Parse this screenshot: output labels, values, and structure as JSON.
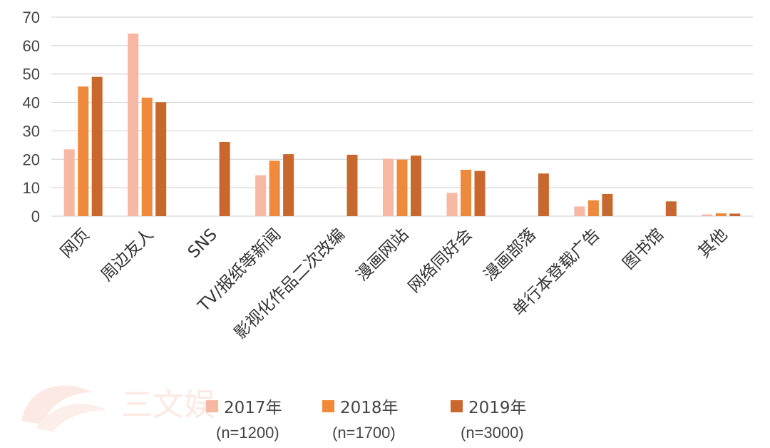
{
  "chart_data": {
    "type": "bar",
    "title": "",
    "xlabel": "",
    "ylabel": "",
    "ylim": [
      0,
      70
    ],
    "yticks": [
      "0",
      "10",
      "20",
      "30",
      "40",
      "50",
      "60",
      "70"
    ],
    "grid": true,
    "legend_position": "bottom",
    "categories": [
      "网页",
      "周边友人",
      "SNS",
      "TV/报纸等新闻",
      "影视化作品二次改编",
      "漫画网站",
      "网络同好会",
      "漫画部落",
      "单行本登载广告",
      "图书馆",
      "其他"
    ],
    "series": [
      {
        "name": "2017年",
        "sample": "(n=1200)",
        "color": "#f6b8a3",
        "values": [
          23.5,
          64.2,
          null,
          14.4,
          null,
          20.2,
          8.2,
          null,
          3.4,
          null,
          0.6
        ]
      },
      {
        "name": "2018年",
        "sample": "(n=1700)",
        "color": "#ef8a3c",
        "values": [
          45.6,
          41.7,
          null,
          19.5,
          null,
          19.9,
          16.3,
          null,
          5.6,
          null,
          1.0
        ]
      },
      {
        "name": "2019年",
        "sample": "(n=3000)",
        "color": "#c9682e",
        "values": [
          49.0,
          40.1,
          26.1,
          21.8,
          21.6,
          21.3,
          15.9,
          15.0,
          7.8,
          5.2,
          0.9
        ]
      }
    ]
  },
  "watermark_text": "三文娱"
}
